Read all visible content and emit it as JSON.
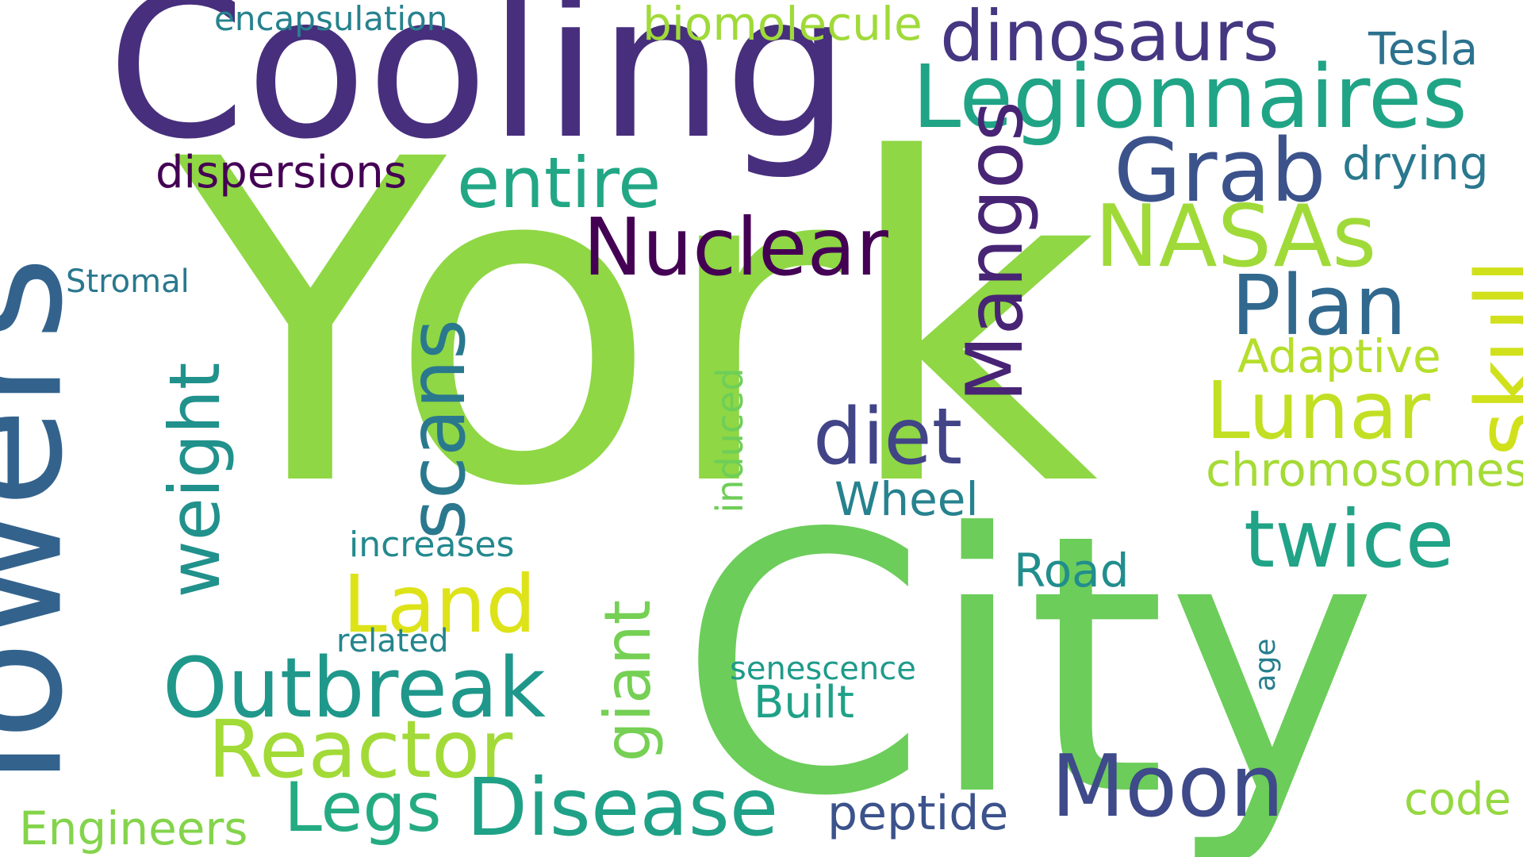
{
  "word_cloud": {
    "words": [
      {
        "text": "York",
        "color": "#8fd744"
      },
      {
        "text": "City",
        "color": "#6ccd5a"
      },
      {
        "text": "Cooling",
        "color": "#472f7d"
      },
      {
        "text": "Towers",
        "color": "#33638d"
      },
      {
        "text": "Legionnaires",
        "color": "#20a486"
      },
      {
        "text": "dinosaurs",
        "color": "#453781"
      },
      {
        "text": "Grab",
        "color": "#3b528b"
      },
      {
        "text": "Nuclear",
        "color": "#440154"
      },
      {
        "text": "NASAs",
        "color": "#a0da39"
      },
      {
        "text": "Plan",
        "color": "#31688e"
      },
      {
        "text": "Mangos",
        "color": "#482475"
      },
      {
        "text": "skull",
        "color": "#d0e11c"
      },
      {
        "text": "Lunar",
        "color": "#c2df23"
      },
      {
        "text": "Adaptive",
        "color": "#b5de2b"
      },
      {
        "text": "chromosomes",
        "color": "#a5db36"
      },
      {
        "text": "diet",
        "color": "#414487"
      },
      {
        "text": "scans",
        "color": "#2a788e"
      },
      {
        "text": "weight",
        "color": "#21918c"
      },
      {
        "text": "entire",
        "color": "#22a785"
      },
      {
        "text": "dispersions",
        "color": "#440154"
      },
      {
        "text": "biomolecule",
        "color": "#a0da39"
      },
      {
        "text": "encapsulation",
        "color": "#26828e"
      },
      {
        "text": "Tesla",
        "color": "#2c728e"
      },
      {
        "text": "drying",
        "color": "#2a788e"
      },
      {
        "text": "Stromal",
        "color": "#2a788e"
      },
      {
        "text": "twice",
        "color": "#20a386"
      },
      {
        "text": "Land",
        "color": "#dde318"
      },
      {
        "text": "Outbreak",
        "color": "#1f988b"
      },
      {
        "text": "Reactor",
        "color": "#a2da37"
      },
      {
        "text": "giant",
        "color": "#75d054"
      },
      {
        "text": "induced",
        "color": "#6ece58"
      },
      {
        "text": "Wheel",
        "color": "#26828e"
      },
      {
        "text": "increases",
        "color": "#23898e"
      },
      {
        "text": "related",
        "color": "#25858e"
      },
      {
        "text": "Road",
        "color": "#228d8d"
      },
      {
        "text": "senescence",
        "color": "#1e9b8a"
      },
      {
        "text": "Built",
        "color": "#1fa188"
      },
      {
        "text": "age",
        "color": "#277f8e"
      },
      {
        "text": "Moon",
        "color": "#3e4a89"
      },
      {
        "text": "Disease",
        "color": "#1fa187"
      },
      {
        "text": "peptide",
        "color": "#3b528b"
      },
      {
        "text": "Legs",
        "color": "#25ab82"
      },
      {
        "text": "Engineers",
        "color": "#84d44b"
      },
      {
        "text": "code",
        "color": "#95d840"
      }
    ]
  }
}
